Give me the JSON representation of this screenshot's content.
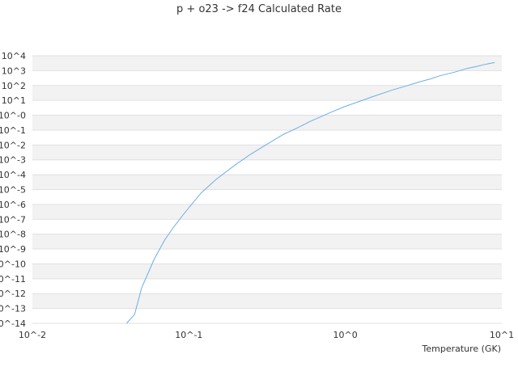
{
  "chart_data": {
    "type": "line",
    "title": "p + o23 -> f24 Calculated Rate",
    "xlabel": "Temperature (GK)",
    "ylabel": "",
    "x_scale": "log",
    "y_scale": "log",
    "xlim": [
      0.01,
      10
    ],
    "ylim": [
      1e-14,
      10000
    ],
    "x_ticks": [
      "10^-2",
      "10^-1",
      "10^0",
      "10^1"
    ],
    "y_ticks": [
      "10^-14",
      "10^-13",
      "10^-12",
      "10^-11",
      "10^-10",
      "10^-9",
      "10^-8",
      "10^-7",
      "10^-6",
      "10^-5",
      "10^-4",
      "10^-3",
      "10^-2",
      "10^-1",
      "10^-0",
      "10^1",
      "10^2",
      "10^3",
      "10^4"
    ],
    "grid": "horizontal alternating bands",
    "legend": "none",
    "series_color": "#6aaee8",
    "series": [
      {
        "x": [
          0.04,
          0.045,
          0.05,
          0.06,
          0.07,
          0.08,
          0.09,
          0.1,
          0.12,
          0.15,
          0.2,
          0.25,
          0.3,
          0.4,
          0.5,
          0.6,
          0.8,
          1.0,
          1.25,
          1.5,
          2.0,
          2.5,
          3.0,
          3.5,
          4.0,
          5.0,
          6.0,
          7.0,
          8.0,
          9.0
        ],
        "y": [
          1e-14,
          4e-14,
          2.5e-12,
          2e-10,
          4e-09,
          3e-08,
          1.5e-07,
          6e-07,
          6e-06,
          5e-05,
          0.0005,
          0.0025,
          0.008,
          0.05,
          0.15,
          0.4,
          1.5,
          4,
          9,
          18,
          50,
          100,
          180,
          280,
          450,
          800,
          1400,
          2000,
          2800,
          3500
        ]
      }
    ]
  }
}
